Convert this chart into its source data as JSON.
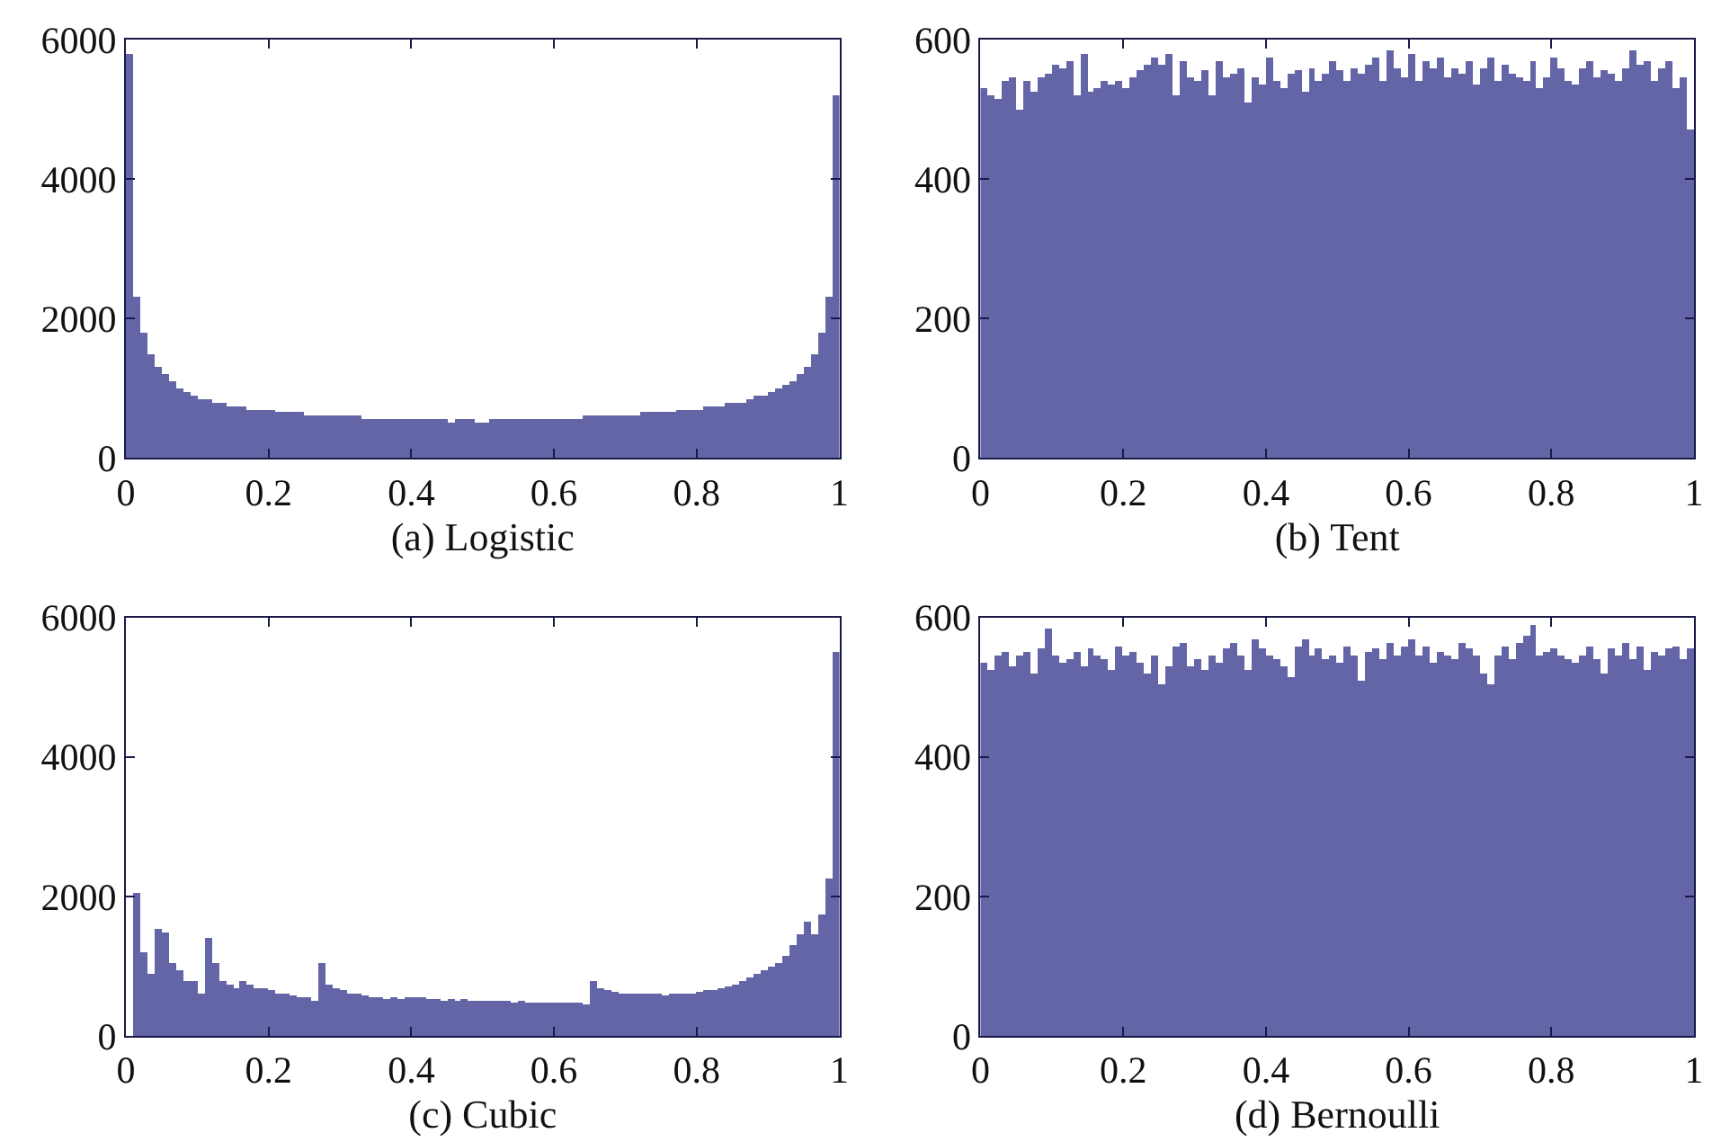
{
  "chart_data": [
    {
      "type": "histogram",
      "xlabel": "(a) Logistic",
      "color": "#6465a6",
      "xlim": [
        0,
        1
      ],
      "xticks": [
        0,
        0.2,
        0.4,
        0.6,
        0.8,
        1
      ],
      "ylim": [
        0,
        6000
      ],
      "yticks": [
        0,
        2000,
        4000,
        6000
      ],
      "bins": [
        0,
        0.01,
        0.02,
        0.03,
        0.04,
        0.05,
        0.06,
        0.07,
        0.08,
        0.09,
        0.1,
        0.11,
        0.12,
        0.13,
        0.14,
        0.15,
        0.16,
        0.17,
        0.18,
        0.19,
        0.2,
        0.21,
        0.22,
        0.23,
        0.24,
        0.25,
        0.26,
        0.27,
        0.28,
        0.29,
        0.3,
        0.31,
        0.32,
        0.33,
        0.34,
        0.35,
        0.36,
        0.37,
        0.38,
        0.39,
        0.4,
        0.41,
        0.42,
        0.43,
        0.44,
        0.45,
        0.46,
        0.47,
        0.48,
        0.49,
        0.5,
        0.51,
        0.52,
        0.53,
        0.54,
        0.55,
        0.56,
        0.57,
        0.58,
        0.59,
        0.6,
        0.61,
        0.62,
        0.63,
        0.64,
        0.65,
        0.66,
        0.67,
        0.68,
        0.69,
        0.7,
        0.71,
        0.72,
        0.73,
        0.74,
        0.75,
        0.76,
        0.77,
        0.78,
        0.79,
        0.8,
        0.81,
        0.82,
        0.83,
        0.84,
        0.85,
        0.86,
        0.87,
        0.88,
        0.89,
        0.9,
        0.91,
        0.92,
        0.93,
        0.94,
        0.95,
        0.96,
        0.97,
        0.98,
        0.99,
        1
      ],
      "values": [
        5800,
        2300,
        1800,
        1500,
        1300,
        1200,
        1100,
        1000,
        950,
        900,
        850,
        850,
        800,
        800,
        750,
        750,
        750,
        700,
        700,
        700,
        700,
        650,
        650,
        650,
        650,
        600,
        600,
        600,
        600,
        600,
        600,
        600,
        600,
        550,
        550,
        550,
        550,
        550,
        550,
        550,
        550,
        550,
        550,
        550,
        550,
        500,
        550,
        550,
        550,
        500,
        500,
        550,
        550,
        550,
        550,
        550,
        550,
        550,
        550,
        550,
        550,
        550,
        550,
        550,
        600,
        600,
        600,
        600,
        600,
        600,
        600,
        600,
        650,
        650,
        650,
        650,
        650,
        700,
        700,
        700,
        700,
        750,
        750,
        750,
        800,
        800,
        800,
        850,
        900,
        900,
        950,
        1000,
        1050,
        1100,
        1200,
        1300,
        1500,
        1800,
        2300,
        5200
      ]
    },
    {
      "type": "histogram",
      "xlabel": "(b) Tent",
      "color": "#6465a6",
      "xlim": [
        0,
        1
      ],
      "xticks": [
        0,
        0.2,
        0.4,
        0.6,
        0.8,
        1
      ],
      "ylim": [
        0,
        600
      ],
      "yticks": [
        0,
        200,
        400,
        600
      ],
      "bins": [
        0,
        0.01,
        0.02,
        0.03,
        0.04,
        0.05,
        0.06,
        0.07,
        0.08,
        0.09,
        0.1,
        0.11,
        0.12,
        0.13,
        0.14,
        0.15,
        0.16,
        0.17,
        0.18,
        0.19,
        0.2,
        0.21,
        0.22,
        0.23,
        0.24,
        0.25,
        0.26,
        0.27,
        0.28,
        0.29,
        0.3,
        0.31,
        0.32,
        0.33,
        0.34,
        0.35,
        0.36,
        0.37,
        0.38,
        0.39,
        0.4,
        0.41,
        0.42,
        0.43,
        0.44,
        0.45,
        0.46,
        0.47,
        0.48,
        0.49,
        0.5,
        0.51,
        0.52,
        0.53,
        0.54,
        0.55,
        0.56,
        0.57,
        0.58,
        0.59,
        0.6,
        0.61,
        0.62,
        0.63,
        0.64,
        0.65,
        0.66,
        0.67,
        0.68,
        0.69,
        0.7,
        0.71,
        0.72,
        0.73,
        0.74,
        0.75,
        0.76,
        0.77,
        0.78,
        0.79,
        0.8,
        0.81,
        0.82,
        0.83,
        0.84,
        0.85,
        0.86,
        0.87,
        0.88,
        0.89,
        0.9,
        0.91,
        0.92,
        0.93,
        0.94,
        0.95,
        0.96,
        0.97,
        0.98,
        0.99,
        1
      ],
      "values": [
        530,
        520,
        515,
        540,
        545,
        500,
        540,
        525,
        545,
        550,
        565,
        560,
        570,
        520,
        580,
        525,
        530,
        540,
        535,
        540,
        530,
        545,
        555,
        565,
        575,
        565,
        580,
        520,
        570,
        545,
        540,
        555,
        520,
        570,
        545,
        550,
        560,
        510,
        545,
        535,
        575,
        540,
        530,
        550,
        555,
        525,
        560,
        540,
        550,
        570,
        555,
        540,
        560,
        550,
        565,
        575,
        540,
        585,
        560,
        545,
        580,
        540,
        570,
        560,
        575,
        545,
        560,
        550,
        570,
        535,
        560,
        575,
        540,
        565,
        550,
        545,
        540,
        570,
        530,
        545,
        575,
        560,
        540,
        535,
        560,
        570,
        545,
        555,
        550,
        540,
        560,
        585,
        565,
        570,
        540,
        560,
        570,
        530,
        545,
        470
      ]
    },
    {
      "type": "histogram",
      "xlabel": "(c) Cubic",
      "color": "#6465a6",
      "xlim": [
        0,
        1
      ],
      "xticks": [
        0,
        0.2,
        0.4,
        0.6,
        0.8,
        1
      ],
      "ylim": [
        0,
        6000
      ],
      "yticks": [
        0,
        2000,
        4000,
        6000
      ],
      "bins": [
        0,
        0.01,
        0.02,
        0.03,
        0.04,
        0.05,
        0.06,
        0.07,
        0.08,
        0.09,
        0.1,
        0.11,
        0.12,
        0.13,
        0.14,
        0.15,
        0.16,
        0.17,
        0.18,
        0.19,
        0.2,
        0.21,
        0.22,
        0.23,
        0.24,
        0.25,
        0.26,
        0.27,
        0.28,
        0.29,
        0.3,
        0.31,
        0.32,
        0.33,
        0.34,
        0.35,
        0.36,
        0.37,
        0.38,
        0.39,
        0.4,
        0.41,
        0.42,
        0.43,
        0.44,
        0.45,
        0.46,
        0.47,
        0.48,
        0.49,
        0.5,
        0.51,
        0.52,
        0.53,
        0.54,
        0.55,
        0.56,
        0.57,
        0.58,
        0.59,
        0.6,
        0.61,
        0.62,
        0.63,
        0.64,
        0.65,
        0.66,
        0.67,
        0.68,
        0.69,
        0.7,
        0.71,
        0.72,
        0.73,
        0.74,
        0.75,
        0.76,
        0.77,
        0.78,
        0.79,
        0.8,
        0.81,
        0.82,
        0.83,
        0.84,
        0.85,
        0.86,
        0.87,
        0.88,
        0.89,
        0.9,
        0.91,
        0.92,
        0.93,
        0.94,
        0.95,
        0.96,
        0.97,
        0.98,
        0.99,
        1
      ],
      "values": [
        0,
        2050,
        1200,
        900,
        1550,
        1500,
        1050,
        950,
        800,
        780,
        600,
        1400,
        1050,
        800,
        750,
        700,
        800,
        750,
        700,
        680,
        650,
        620,
        600,
        580,
        570,
        550,
        500,
        1050,
        750,
        680,
        650,
        620,
        600,
        580,
        560,
        560,
        540,
        550,
        540,
        550,
        560,
        550,
        540,
        530,
        520,
        530,
        520,
        540,
        510,
        520,
        510,
        500,
        510,
        500,
        490,
        500,
        490,
        480,
        480,
        490,
        480,
        470,
        480,
        470,
        460,
        800,
        700,
        650,
        630,
        600,
        600,
        620,
        620,
        600,
        610,
        590,
        600,
        600,
        620,
        620,
        640,
        650,
        660,
        700,
        720,
        750,
        800,
        850,
        900,
        950,
        1000,
        1050,
        1150,
        1300,
        1450,
        1650,
        1450,
        1750,
        2250,
        5500
      ]
    },
    {
      "type": "histogram",
      "xlabel": "(d) Bernoulli",
      "color": "#6465a6",
      "xlim": [
        0,
        1
      ],
      "xticks": [
        0,
        0.2,
        0.4,
        0.6,
        0.8,
        1
      ],
      "ylim": [
        0,
        600
      ],
      "yticks": [
        0,
        200,
        400,
        600
      ],
      "bins": [
        0,
        0.01,
        0.02,
        0.03,
        0.04,
        0.05,
        0.06,
        0.07,
        0.08,
        0.09,
        0.1,
        0.11,
        0.12,
        0.13,
        0.14,
        0.15,
        0.16,
        0.17,
        0.18,
        0.19,
        0.2,
        0.21,
        0.22,
        0.23,
        0.24,
        0.25,
        0.26,
        0.27,
        0.28,
        0.29,
        0.3,
        0.31,
        0.32,
        0.33,
        0.34,
        0.35,
        0.36,
        0.37,
        0.38,
        0.39,
        0.4,
        0.41,
        0.42,
        0.43,
        0.44,
        0.45,
        0.46,
        0.47,
        0.48,
        0.49,
        0.5,
        0.51,
        0.52,
        0.53,
        0.54,
        0.55,
        0.56,
        0.57,
        0.58,
        0.59,
        0.6,
        0.61,
        0.62,
        0.63,
        0.64,
        0.65,
        0.66,
        0.67,
        0.68,
        0.69,
        0.7,
        0.71,
        0.72,
        0.73,
        0.74,
        0.75,
        0.76,
        0.77,
        0.78,
        0.79,
        0.8,
        0.81,
        0.82,
        0.83,
        0.84,
        0.85,
        0.86,
        0.87,
        0.88,
        0.89,
        0.9,
        0.91,
        0.92,
        0.93,
        0.94,
        0.95,
        0.96,
        0.97,
        0.98,
        0.99,
        1
      ],
      "values": [
        535,
        525,
        545,
        550,
        530,
        545,
        550,
        520,
        555,
        585,
        545,
        535,
        540,
        550,
        530,
        555,
        545,
        540,
        525,
        560,
        545,
        550,
        535,
        520,
        545,
        505,
        530,
        560,
        565,
        530,
        540,
        525,
        545,
        535,
        555,
        565,
        545,
        525,
        570,
        555,
        545,
        540,
        530,
        515,
        560,
        570,
        545,
        555,
        540,
        545,
        535,
        560,
        545,
        510,
        550,
        555,
        540,
        565,
        545,
        560,
        570,
        545,
        560,
        535,
        550,
        545,
        540,
        565,
        555,
        545,
        520,
        505,
        545,
        560,
        540,
        565,
        575,
        590,
        545,
        550,
        555,
        545,
        540,
        535,
        545,
        560,
        540,
        520,
        555,
        545,
        565,
        540,
        560,
        525,
        550,
        545,
        555,
        560,
        540,
        555
      ]
    }
  ]
}
